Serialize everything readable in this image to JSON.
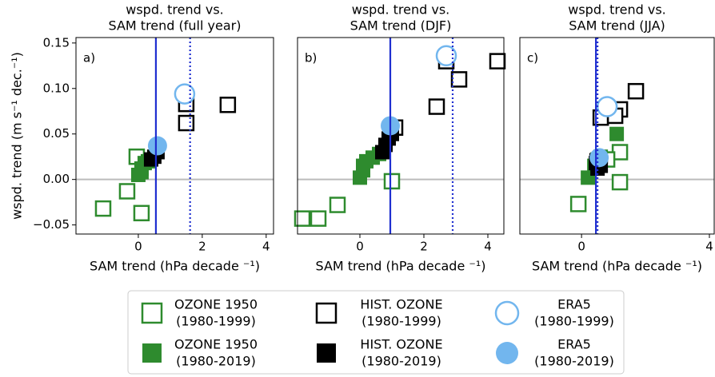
{
  "chart_data": [
    {
      "type": "scatter",
      "title": [
        "wspd. trend vs.",
        "SAM trend (full year)"
      ],
      "panel_label": "a)",
      "xlabel": "SAM trend (hPa decade ⁻¹)",
      "ylabel": "wspd. trend (m s⁻¹ dec.⁻¹)",
      "xlim": [
        -1.95,
        4.23
      ],
      "ylim": [
        -0.06,
        0.156
      ],
      "xticks": [
        0,
        2,
        4
      ],
      "yticks": [
        0.15,
        {
          "value": 0.1,
          "label": "0.10"
        },
        {
          "value": 0.05,
          "label": "0.05"
        },
        {
          "value": 0,
          "label": "0.00"
        },
        {
          "value": -0.05,
          "label": "−0.05"
        }
      ],
      "hline": 0,
      "hline_color": "#bbbbbb",
      "vlines": [
        {
          "x": 0.55,
          "style": "solid",
          "color": "#1f2fd0"
        },
        {
          "x": 1.62,
          "style": "dotted",
          "color": "#1f2fd0"
        }
      ],
      "series": [
        {
          "name": [
            "OZONE 1950",
            "(1980-1999)"
          ],
          "marker": "square",
          "filled": false,
          "color": "#2e8b2e",
          "x": [
            -1.1,
            -0.35,
            0.1,
            -0.05
          ],
          "values": [
            -0.032,
            -0.013,
            -0.037,
            0.025
          ]
        },
        {
          "name": [
            "OZONE 1950",
            "(1980-2019)"
          ],
          "marker": "square",
          "filled": true,
          "color": "#2e8b2e",
          "x": [
            0,
            0.1,
            0.2,
            0.3,
            0.1
          ],
          "values": [
            0.005,
            0.012,
            0.018,
            0.02,
            0.008
          ]
        },
        {
          "name": [
            "HIST. OZONE",
            "(1980-1999)"
          ],
          "marker": "square",
          "filled": false,
          "color": "#000000",
          "x": [
            1.5,
            1.5,
            2.8
          ],
          "values": [
            0.083,
            0.062,
            0.082
          ]
        },
        {
          "name": [
            "HIST. OZONE",
            "(1980-2019)"
          ],
          "marker": "square",
          "filled": true,
          "color": "#000000",
          "x": [
            0.5,
            0.6,
            0.4
          ],
          "values": [
            0.025,
            0.03,
            0.022
          ]
        },
        {
          "name": [
            "ERA5",
            "(1980-1999)"
          ],
          "marker": "circle",
          "filled": false,
          "color": "#72b6ee",
          "x": [
            1.45
          ],
          "values": [
            0.094
          ]
        },
        {
          "name": [
            "ERA5",
            "(1980-2019)"
          ],
          "marker": "circle",
          "filled": true,
          "color": "#72b6ee",
          "x": [
            0.6
          ],
          "values": [
            0.037
          ]
        }
      ]
    },
    {
      "type": "scatter",
      "title": [
        "wspd. trend vs.",
        "SAM trend (DJF)"
      ],
      "panel_label": "b)",
      "xlabel": "SAM trend (hPa decade ⁻¹)",
      "xlim": [
        -1.95,
        4.5
      ],
      "ylim": [
        -0.06,
        0.156
      ],
      "xticks": [
        0,
        2,
        4
      ],
      "hline": 0,
      "hline_color": "#bbbbbb",
      "vlines": [
        {
          "x": 0.95,
          "style": "solid",
          "color": "#1f2fd0"
        },
        {
          "x": 2.9,
          "style": "dotted",
          "color": "#1f2fd0"
        }
      ],
      "series": [
        {
          "marker": "square",
          "filled": false,
          "color": "#2e8b2e",
          "x": [
            -1.8,
            -1.3,
            -0.7,
            1.0
          ],
          "values": [
            -0.043,
            -0.043,
            -0.028,
            -0.002
          ]
        },
        {
          "marker": "square",
          "filled": true,
          "color": "#2e8b2e",
          "x": [
            0,
            0.1,
            0.2,
            0.4,
            0.6,
            0.1
          ],
          "values": [
            0.002,
            0.015,
            0.02,
            0.024,
            0.028,
            0.01
          ]
        },
        {
          "marker": "square",
          "filled": false,
          "color": "#000000",
          "x": [
            2.4,
            2.7,
            3.1,
            4.3,
            1.1
          ],
          "values": [
            0.08,
            0.13,
            0.11,
            0.13,
            0.057
          ]
        },
        {
          "marker": "square",
          "filled": true,
          "color": "#000000",
          "x": [
            0.8,
            0.9,
            1.0,
            0.7
          ],
          "values": [
            0.038,
            0.045,
            0.05,
            0.03
          ]
        },
        {
          "marker": "circle",
          "filled": false,
          "color": "#72b6ee",
          "x": [
            2.7
          ],
          "values": [
            0.136
          ]
        },
        {
          "marker": "circle",
          "filled": true,
          "color": "#72b6ee",
          "x": [
            0.95
          ],
          "values": [
            0.059
          ]
        }
      ]
    },
    {
      "type": "scatter",
      "title": [
        "wspd. trend vs.",
        "SAM trend (JJA)"
      ],
      "panel_label": "c)",
      "xlabel": "SAM trend (hPa decade ⁻¹)",
      "xlim": [
        -1.93,
        4.15
      ],
      "ylim": [
        -0.06,
        0.156
      ],
      "xticks": [
        0,
        4
      ],
      "hline": 0,
      "hline_color": "#bbbbbb",
      "vlines": [
        {
          "x": 0.45,
          "style": "solid",
          "color": "#1f2fd0"
        },
        {
          "x": 0.5,
          "style": "dotted",
          "color": "#1f2fd0"
        }
      ],
      "series": [
        {
          "marker": "square",
          "filled": false,
          "color": "#2e8b2e",
          "x": [
            -0.1,
            1.2,
            1.2,
            0.8
          ],
          "values": [
            -0.027,
            0.03,
            -0.003,
            0.022
          ]
        },
        {
          "marker": "square",
          "filled": true,
          "color": "#2e8b2e",
          "x": [
            0.2,
            0.4,
            0.5,
            1.1,
            0.6
          ],
          "values": [
            0.002,
            0.015,
            0.022,
            0.05,
            0.025
          ]
        },
        {
          "marker": "square",
          "filled": false,
          "color": "#000000",
          "x": [
            0.6,
            1.2,
            1.7,
            1.05,
            0.5
          ],
          "values": [
            0.068,
            0.077,
            0.097,
            0.07,
            0.02
          ]
        },
        {
          "marker": "square",
          "filled": true,
          "color": "#000000",
          "x": [
            0.5,
            0.6,
            0.45
          ],
          "values": [
            0.012,
            0.015,
            0.018
          ]
        },
        {
          "marker": "circle",
          "filled": false,
          "color": "#72b6ee",
          "x": [
            0.8
          ],
          "values": [
            0.08
          ]
        },
        {
          "marker": "circle",
          "filled": true,
          "color": "#72b6ee",
          "x": [
            0.55
          ],
          "values": [
            0.024
          ]
        }
      ]
    }
  ]
}
